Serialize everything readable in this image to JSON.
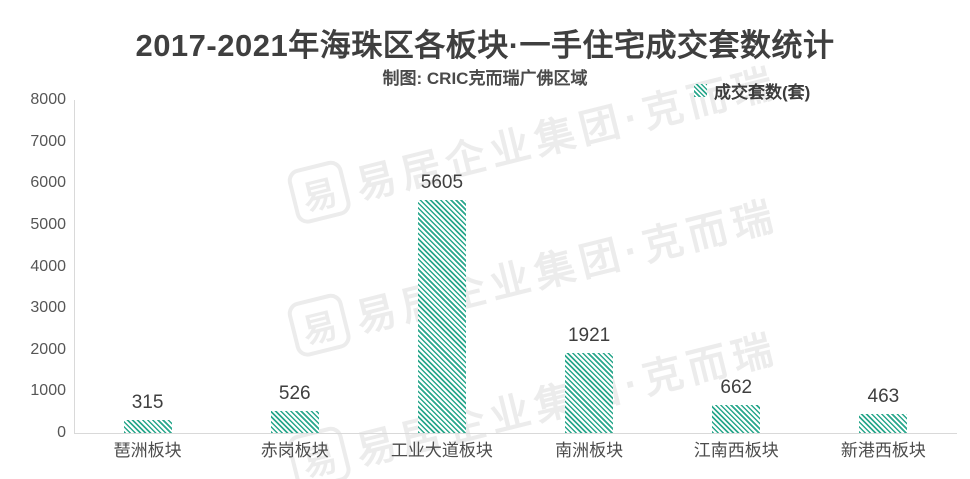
{
  "title": "2017-2021年海珠区各板块·一手住宅成交套数统计",
  "subtitle": "制图: CRIC克而瑞广佛区域",
  "legend": {
    "label": "成交套数(套)"
  },
  "watermark": {
    "text": "易居企业集团·克而瑞",
    "logo_char": "易"
  },
  "colors": {
    "bar": "#2aa78c",
    "title_text": "#3f3f3f",
    "axis_line": "#d9d9d9",
    "tick_text": "#565656",
    "watermark": "#ececec"
  },
  "chart_data": {
    "type": "bar",
    "title": "2017-2021年海珠区各板块·一手住宅成交套数统计",
    "subtitle": "制图: CRIC克而瑞广佛区域",
    "series_name": "成交套数(套)",
    "categories": [
      "琶洲板块",
      "赤岗板块",
      "工业大道板块",
      "南洲板块",
      "江南西板块",
      "新港西板块"
    ],
    "values": [
      315,
      526,
      5605,
      1921,
      662,
      463
    ],
    "data_labels_shown": [
      315,
      526,
      5605,
      1921,
      662,
      463
    ],
    "xlabel": "",
    "ylabel": "",
    "ylim": [
      0,
      8000
    ],
    "ytick_step": 1000,
    "grid": false,
    "bar_style": "diagonal-hatch",
    "legend_position": "top-right"
  }
}
